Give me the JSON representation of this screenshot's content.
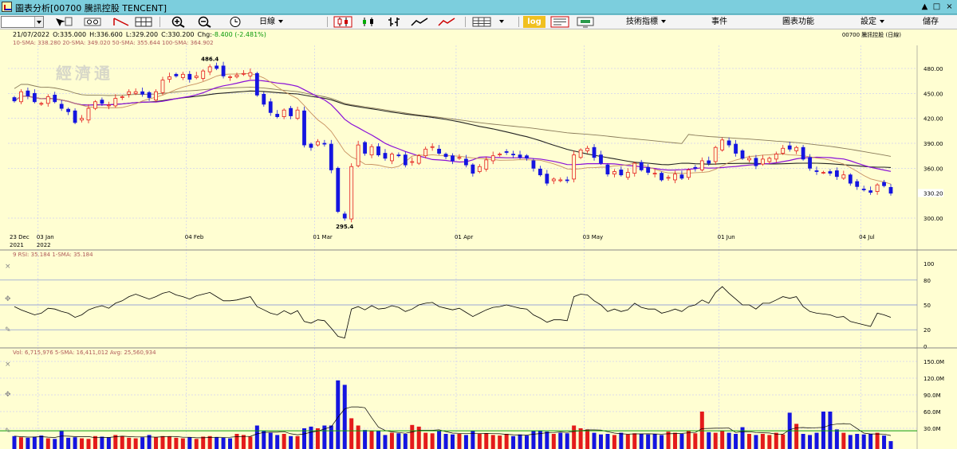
{
  "window": {
    "title": "圖表分析[00700 騰訊控股 TENCENT]",
    "controls": [
      "▲",
      "□",
      "×"
    ]
  },
  "toolbar": {
    "menus": [
      "日線",
      "技術指標",
      "事件",
      "圖表功能",
      "設定",
      "儲存"
    ],
    "log_label": "log"
  },
  "quote": {
    "date": "21/07/2022",
    "open_label": "O:",
    "open": "335.000",
    "high_label": "H:",
    "high": "336.600",
    "low_label": "L:",
    "low": "329.200",
    "close_label": "C:",
    "close": "330.200",
    "chg_label": "Chg:",
    "chg": "-8.400 (-2.481%)",
    "stock": "00700 騰訊控股 (日線)"
  },
  "sma_legend": "10-SMA: 338.280 20-SMA: 349.020 50-SMA: 355.644 100-SMA: 364.902",
  "watermark": "經濟通",
  "price_panel": {
    "y_ticks": [
      "480.00",
      "450.00",
      "420.00",
      "390.00",
      "360.00",
      "330.20",
      "300.00"
    ],
    "high_label": "486.4",
    "low_label": "295.4",
    "last_price": "330.20"
  },
  "x_axis": {
    "labels": [
      {
        "line1": "23 Dec",
        "line2": "2021"
      },
      {
        "line1": "03 Jan",
        "line2": "2022"
      },
      {
        "line1": "04 Feb",
        "line2": ""
      },
      {
        "line1": "01 Mar",
        "line2": ""
      },
      {
        "line1": "01 Apr",
        "line2": ""
      },
      {
        "line1": "03 May",
        "line2": ""
      },
      {
        "line1": "01 Jun",
        "line2": ""
      },
      {
        "line1": "04 Jul",
        "line2": ""
      }
    ]
  },
  "rsi_panel": {
    "legend": "9 RSI: 35.184 1-SMA: 35.184",
    "y_ticks": [
      "100",
      "80",
      "50",
      "20",
      "0"
    ]
  },
  "vol_panel": {
    "legend": "Vol: 6,715,976 5-SMA: 16,411,012 Avg: 25,560,934",
    "y_ticks": [
      "150.0M",
      "120.0M",
      "90.0M",
      "60.0M",
      "30.0M"
    ]
  },
  "colors": {
    "up": "#e41b1b",
    "down": "#1515e0",
    "sma10": "#c89060",
    "sma20": "#8a10d8",
    "sma50": "#222222",
    "sma100": "#8a7b5a",
    "grid": "#b9b9ff",
    "bg": "#fffed2"
  },
  "chart_data": {
    "type": "candlestick",
    "x_axis_labels": [
      "23 Dec 2021",
      "03 Jan 2022",
      "04 Feb",
      "01 Mar",
      "01 Apr",
      "03 May",
      "01 Jun",
      "04 Jul"
    ],
    "price_range": [
      290,
      500
    ],
    "period_high": 486.4,
    "period_low": 295.4,
    "closes": [
      441,
      452,
      447,
      440,
      438,
      446,
      440,
      432,
      428,
      415,
      420,
      432,
      440,
      438,
      436,
      444,
      446,
      452,
      452,
      449,
      445,
      452,
      466,
      470,
      471,
      473,
      467,
      471,
      477,
      482,
      480,
      471,
      470,
      472,
      474,
      475,
      448,
      437,
      427,
      422,
      430,
      423,
      430,
      388,
      385,
      392,
      389,
      358,
      308,
      300,
      362,
      388,
      378,
      386,
      376,
      372,
      377,
      375,
      364,
      368,
      375,
      383,
      386,
      378,
      374,
      369,
      373,
      364,
      354,
      362,
      370,
      375,
      377,
      379,
      376,
      373,
      372,
      360,
      352,
      342,
      347,
      346,
      345,
      376,
      382,
      384,
      373,
      366,
      353,
      356,
      352,
      355,
      366,
      358,
      355,
      354,
      346,
      349,
      353,
      348,
      358,
      360,
      369,
      366,
      385,
      394,
      388,
      378,
      372,
      372,
      363,
      371,
      372,
      377,
      384,
      383,
      385,
      371,
      360,
      356,
      355,
      354,
      350,
      352,
      342,
      338,
      334,
      331,
      340,
      339,
      330
    ],
    "rsi": [
      48,
      44,
      41,
      38,
      40,
      46,
      45,
      42,
      40,
      35,
      38,
      44,
      47,
      49,
      46,
      52,
      55,
      60,
      63,
      60,
      57,
      60,
      64,
      66,
      62,
      60,
      57,
      61,
      63,
      65,
      60,
      55,
      55,
      56,
      58,
      60,
      48,
      44,
      40,
      38,
      43,
      39,
      43,
      30,
      28,
      32,
      31,
      22,
      12,
      10,
      45,
      48,
      44,
      49,
      45,
      46,
      49,
      47,
      42,
      45,
      50,
      52,
      53,
      48,
      46,
      44,
      46,
      41,
      36,
      40,
      44,
      47,
      48,
      50,
      48,
      46,
      45,
      38,
      34,
      29,
      32,
      32,
      31,
      60,
      63,
      62,
      55,
      50,
      42,
      45,
      42,
      44,
      52,
      47,
      45,
      45,
      40,
      42,
      45,
      42,
      48,
      50,
      56,
      52,
      65,
      72,
      64,
      57,
      50,
      50,
      45,
      52,
      52,
      56,
      60,
      58,
      60,
      48,
      42,
      40,
      39,
      38,
      35,
      36,
      30,
      28,
      26,
      24,
      40,
      38,
      35
    ],
    "volume_m": [
      16,
      14,
      13,
      15,
      17,
      12,
      11,
      26,
      13,
      14,
      12,
      11,
      16,
      15,
      14,
      18,
      16,
      13,
      12,
      14,
      18,
      14,
      16,
      15,
      13,
      12,
      14,
      11,
      15,
      16,
      14,
      13,
      12,
      20,
      18,
      15,
      35,
      25,
      22,
      18,
      20,
      16,
      16,
      30,
      33,
      30,
      35,
      35,
      116,
      108,
      48,
      35,
      27,
      26,
      25,
      18,
      22,
      21,
      20,
      36,
      33,
      22,
      21,
      25,
      20,
      19,
      20,
      18,
      25,
      20,
      21,
      18,
      17,
      20,
      16,
      19,
      17,
      25,
      26,
      24,
      20,
      22,
      21,
      35,
      30,
      28,
      22,
      19,
      20,
      18,
      22,
      19,
      21,
      20,
      19,
      20,
      18,
      24,
      22,
      20,
      25,
      21,
      60,
      23,
      22,
      25,
      22,
      20,
      32,
      20,
      18,
      20,
      18,
      22,
      19,
      58,
      38,
      20,
      18,
      22,
      60,
      60,
      28,
      22,
      18,
      20,
      19,
      20,
      22,
      17,
      7
    ]
  }
}
